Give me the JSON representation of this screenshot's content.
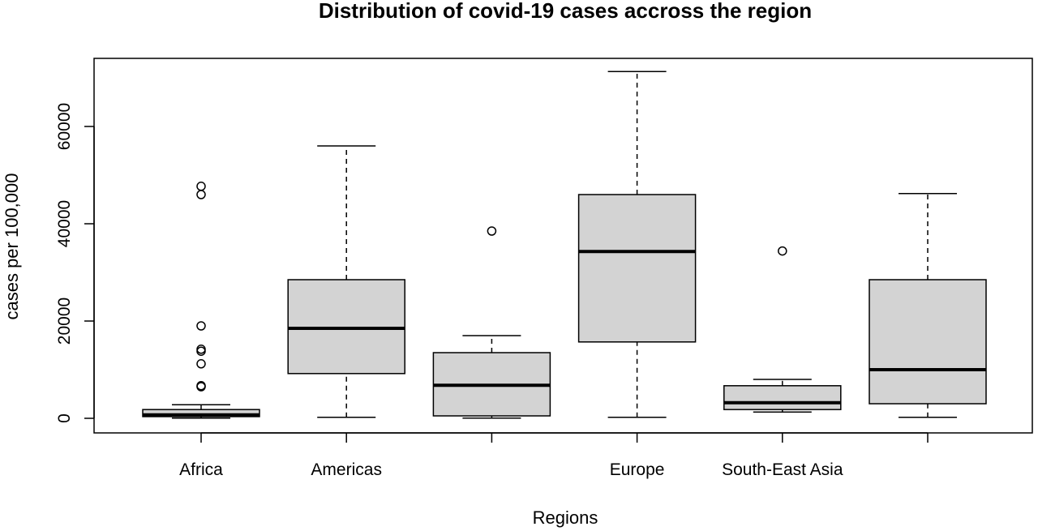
{
  "chart_data": {
    "type": "boxplot",
    "title": "Distribution of covid-19 cases accross the region",
    "xlabel": "Regions",
    "ylabel": "cases per 100,000",
    "yticks": [
      0,
      20000,
      40000,
      60000
    ],
    "ylim": [
      -3000,
      74000
    ],
    "grid": false,
    "legend": "none",
    "box_fill": "#d3d3d3",
    "categories": [
      "Africa",
      "Americas",
      "",
      "Europe",
      "South-East Asia",
      ""
    ],
    "boxes": [
      {
        "whisker_low": 50,
        "q1": 350,
        "median": 700,
        "q3": 1800,
        "whisker_high": 2800,
        "outliers": [
          6500,
          6700,
          11200,
          13800,
          14200,
          19000,
          46000,
          47700
        ]
      },
      {
        "whisker_low": 200,
        "q1": 9200,
        "median": 18500,
        "q3": 28500,
        "whisker_high": 56000,
        "outliers": []
      },
      {
        "whisker_low": 50,
        "q1": 500,
        "median": 6800,
        "q3": 13500,
        "whisker_high": 17000,
        "outliers": [
          38500
        ]
      },
      {
        "whisker_low": 200,
        "q1": 15700,
        "median": 34300,
        "q3": 46000,
        "whisker_high": 71300,
        "outliers": []
      },
      {
        "whisker_low": 1300,
        "q1": 1800,
        "median": 3200,
        "q3": 6700,
        "whisker_high": 8000,
        "outliers": [
          34400
        ]
      },
      {
        "whisker_low": 200,
        "q1": 3000,
        "median": 10000,
        "q3": 28500,
        "whisker_high": 46200,
        "outliers": []
      }
    ]
  }
}
